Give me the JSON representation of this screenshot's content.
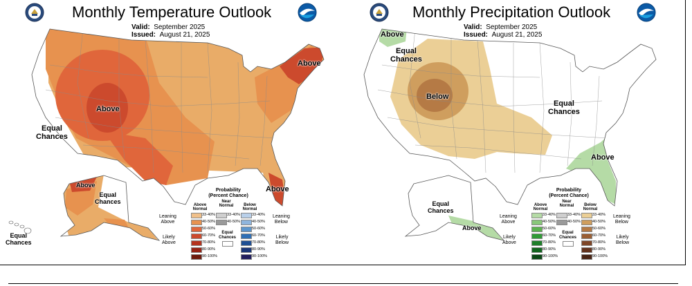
{
  "temperature": {
    "title": "Monthly Temperature Outlook",
    "valid_label": "Valid:",
    "valid_value": "September 2025",
    "issued_label": "Issued:",
    "issued_value": "August 21, 2025",
    "labels": {
      "above_main": "Above",
      "above_northeast": "Above",
      "above_florida": "Above",
      "above_alaska": "Above",
      "equal_chances_west_1": "Equal",
      "equal_chances_west_2": "Chances",
      "equal_chances_alaska_1": "Equal",
      "equal_chances_alaska_2": "Chances",
      "equal_chances_hawaii_1": "Equal",
      "equal_chances_hawaii_2": "Chances"
    },
    "colors": {
      "ec": "#ffffff",
      "c33_40": "#e9ac68",
      "c40_50": "#e7924f",
      "c50_60": "#e0663b",
      "c60_70": "#cc4a2d"
    }
  },
  "precipitation": {
    "title": "Monthly Precipitation Outlook",
    "valid_label": "Valid:",
    "valid_value": "September 2025",
    "issued_label": "Issued:",
    "issued_value": "August 21, 2025",
    "labels": {
      "above_nw": "Above",
      "equal_chances_nw_1": "Equal",
      "equal_chances_nw_2": "Chances",
      "below": "Below",
      "equal_chances_east_1": "Equal",
      "equal_chances_east_2": "Chances",
      "above_se": "Above",
      "equal_chances_alaska_1": "Equal",
      "equal_chances_alaska_2": "Chances",
      "above_alaska": "Above"
    },
    "colors": {
      "ec": "#ffffff",
      "a33_40": "#b5dba6",
      "a40_50": "#89c77a",
      "b33_40": "#ebcf96",
      "b40_50": "#cf9e5e",
      "b50_60": "#b57a45"
    }
  },
  "legend_temperature": {
    "title_1": "Probability",
    "title_2": "(Percent Chance)",
    "above_head_1": "Above",
    "above_head_2": "Normal",
    "near_head_1": "Near",
    "near_head_2": "Normal",
    "below_head_1": "Below",
    "below_head_2": "Normal",
    "leaning_above_1": "Leaning",
    "leaning_above_2": "Above",
    "likely_above_1": "Likely",
    "likely_above_2": "Above",
    "leaning_below_1": "Leaning",
    "leaning_below_2": "Below",
    "likely_below_1": "Likely",
    "likely_below_2": "Below",
    "ec_1": "Equal",
    "ec_2": "Chances",
    "above_rows": [
      "33-40%",
      "40-50%",
      "50-60%",
      "60-70%",
      "70-80%",
      "80-90%",
      "90-100%"
    ],
    "near_rows": [
      "33-40%",
      "40-50%"
    ],
    "below_rows": [
      "33-40%",
      "40-50%",
      "50-60%",
      "60-70%",
      "70-80%",
      "80-90%",
      "90-100%"
    ],
    "above_colors": [
      "#f0c08a",
      "#e7924f",
      "#e0663b",
      "#cc4a2d",
      "#b5341f",
      "#962315",
      "#6e1a0d"
    ],
    "near_colors": [
      "#cfcfcf",
      "#9a9a9a"
    ],
    "below_colors": [
      "#b9d0ea",
      "#8fb5dd",
      "#5d96cd",
      "#2f6fb5",
      "#1f4f93",
      "#1b3677",
      "#221e5e"
    ]
  },
  "legend_precipitation": {
    "title_1": "Probability",
    "title_2": "(Percent Chance)",
    "above_head_1": "Above",
    "above_head_2": "Normal",
    "near_head_1": "Near",
    "near_head_2": "Normal",
    "below_head_1": "Below",
    "below_head_2": "Normal",
    "leaning_above_1": "Leaning",
    "leaning_above_2": "Above",
    "likely_above_1": "Likely",
    "likely_above_2": "Above",
    "leaning_below_1": "Leaning",
    "leaning_below_2": "Below",
    "likely_below_1": "Likely",
    "likely_below_2": "Below",
    "ec_1": "Equal",
    "ec_2": "Chances",
    "above_rows": [
      "33-40%",
      "40-50%",
      "50-60%",
      "60-70%",
      "70-80%",
      "80-90%",
      "90-100%"
    ],
    "near_rows": [
      "33-40%",
      "40-50%"
    ],
    "below_rows": [
      "33-40%",
      "40-50%",
      "50-60%",
      "60-70%",
      "70-80%",
      "80-90%",
      "90-100%"
    ],
    "above_colors": [
      "#b5dba6",
      "#89c77a",
      "#5cb24f",
      "#2f9a35",
      "#1f7f2a",
      "#13641f",
      "#0b4716"
    ],
    "near_colors": [
      "#cfcfcf",
      "#9a9a9a"
    ],
    "below_colors": [
      "#ebcf96",
      "#cf9e5e",
      "#b57a45",
      "#9a5e33",
      "#7e4627",
      "#63331d",
      "#482414"
    ]
  },
  "icons": {
    "left_logo_1": "noaa-seal-icon",
    "left_logo_2": "noaa-bird-icon",
    "right_logo_1": "noaa-seal-icon",
    "right_logo_2": "noaa-bird-icon"
  }
}
